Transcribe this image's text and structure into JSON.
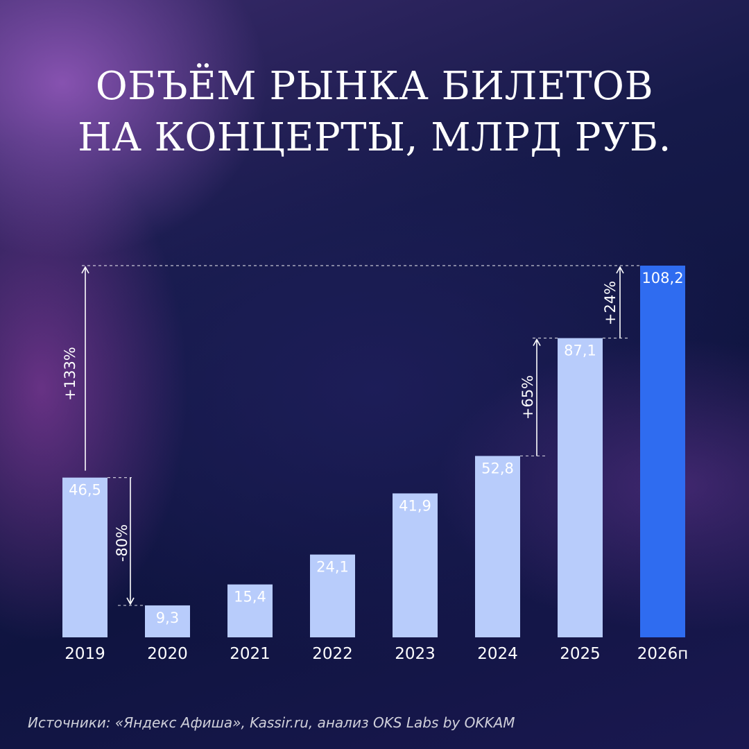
{
  "title_lines": [
    "ОБЪЁМ РЫНКА БИЛЕТОВ",
    "НА КОНЦЕРТЫ, МЛРД РУБ."
  ],
  "source": "Источники: «Яндекс Афиша», Kassir.ru, анализ OKS Labs by OKKAM",
  "colors": {
    "bar": "#b8ccfb",
    "bar_highlight": "#2f6cf0",
    "text": "#ffffff"
  },
  "chart_data": {
    "type": "bar",
    "categories": [
      "2019",
      "2020",
      "2021",
      "2022",
      "2023",
      "2024",
      "2025",
      "2026п"
    ],
    "values": [
      46.5,
      9.3,
      15.4,
      24.1,
      41.9,
      52.8,
      87.1,
      108.2
    ],
    "value_labels": [
      "46,5",
      "9,3",
      "15,4",
      "24,1",
      "41,9",
      "52,8",
      "87,1",
      "108,2"
    ],
    "highlight_index": 7,
    "ylim": [
      0,
      108.2
    ],
    "grid": false,
    "annotations": [
      {
        "from_index": 0,
        "to_index": 7,
        "label": "+133%"
      },
      {
        "from_index": 0,
        "to_index": 1,
        "label": "-80%"
      },
      {
        "from_index": 5,
        "to_index": 6,
        "label": "+65%"
      },
      {
        "from_index": 6,
        "to_index": 7,
        "label": "+24%"
      }
    ]
  }
}
